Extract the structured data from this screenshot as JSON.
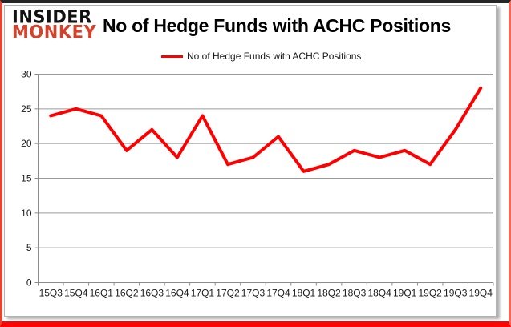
{
  "logo": {
    "line1": "INSIDER",
    "line2": "MONKEY"
  },
  "header": {
    "title": "No of Hedge Funds with ACHC Positions"
  },
  "legend": {
    "label": "No of Hedge Funds with ACHC Positions"
  },
  "chart_data": {
    "type": "line",
    "title": "No of Hedge Funds with ACHC Positions",
    "categories": [
      "15Q3",
      "15Q4",
      "16Q1",
      "16Q2",
      "16Q3",
      "16Q4",
      "17Q1",
      "17Q2",
      "17Q3",
      "17Q4",
      "18Q1",
      "18Q2",
      "18Q3",
      "18Q4",
      "19Q1",
      "19Q2",
      "19Q3",
      "19Q4"
    ],
    "series": [
      {
        "name": "No of Hedge Funds with ACHC Positions",
        "values": [
          24,
          25,
          24,
          19,
          22,
          18,
          24,
          17,
          18,
          21,
          16,
          17,
          19,
          18,
          19,
          17,
          22,
          28
        ]
      }
    ],
    "xlabel": "",
    "ylabel": "",
    "ylim": [
      0,
      30
    ],
    "yticks": [
      0,
      5,
      10,
      15,
      20,
      25,
      30
    ],
    "grid": true,
    "legend_position": "top-center",
    "line_color": "#FF0000"
  },
  "colors": {
    "line": "#FF0000",
    "logo_red": "#D6412B",
    "gridline": "#9A9A9A",
    "axis": "#8C8C8C",
    "frame_bottom": "#FF0404",
    "frame_side": "#E8432F",
    "frame_top": "#262626"
  }
}
